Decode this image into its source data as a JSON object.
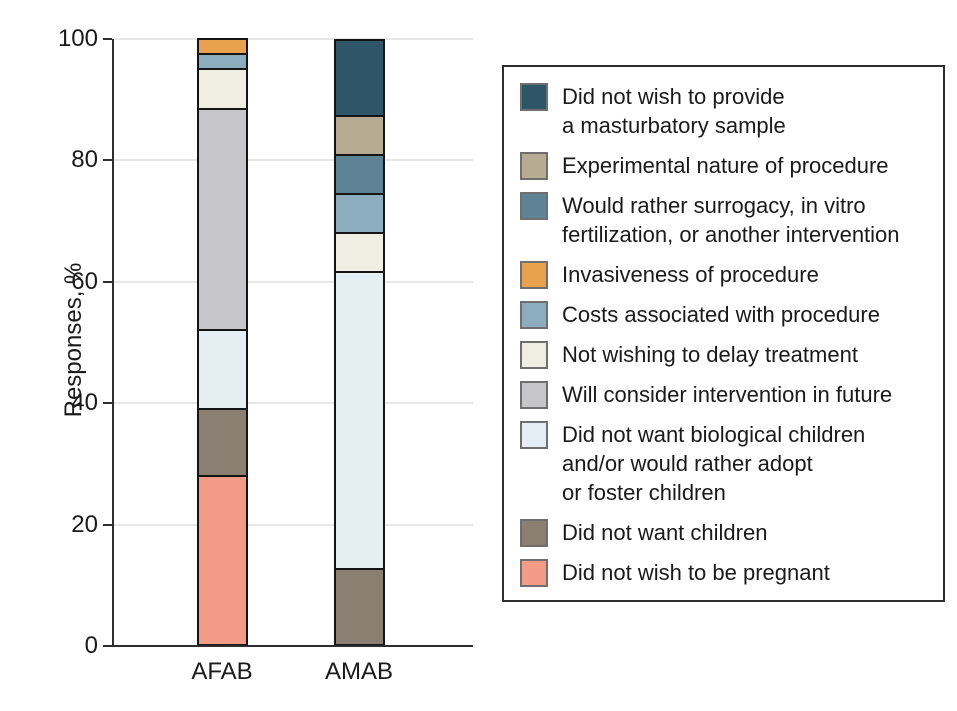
{
  "figure": {
    "background": "#ffffff",
    "axis_color": "#2e2e2e",
    "gridline_color": "#e7e7e6",
    "segment_border_color": "#141414"
  },
  "chart_data": {
    "type": "bar",
    "stacked": true,
    "title": "",
    "xlabel": "",
    "ylabel": "Responses, %",
    "ylim": [
      0,
      100
    ],
    "yticks": [
      0,
      20,
      40,
      60,
      80,
      100
    ],
    "grid": "horizontal",
    "legend_position": "right",
    "categories": [
      "AFAB",
      "AMAB"
    ],
    "series": [
      {
        "name": "Did not wish to provide\na masturbatory sample",
        "color": "#2F5569",
        "values": [
          0,
          12.5
        ]
      },
      {
        "name": "Experimental nature of procedure",
        "color": "#B7AB94",
        "values": [
          0,
          6.25
        ]
      },
      {
        "name": "Would rather surrogacy, in vitro\nfertilization, or another intervention",
        "color": "#5F8396",
        "values": [
          0,
          6.25
        ]
      },
      {
        "name": "Invasiveness of procedure",
        "color": "#E9A150",
        "values": [
          2.2,
          0
        ]
      },
      {
        "name": "Costs associated with procedure",
        "color": "#8BADBE",
        "values": [
          2.2,
          6.25
        ]
      },
      {
        "name": "Not wishing to delay treatment",
        "color": "#EFEEE2",
        "values": [
          6.5,
          6.25
        ]
      },
      {
        "name": "Will consider intervention in future",
        "color": "#C6C6C8",
        "values": [
          37.0,
          0
        ]
      },
      {
        "name": "Did not want biological children\nand/or would rather adopt\nor foster children",
        "color": "#E4EEF3",
        "values": [
          13.0,
          50.0
        ]
      },
      {
        "name": "Did not want children",
        "color": "#8A7F70",
        "values": [
          10.9,
          12.5
        ]
      },
      {
        "name": "Did not wish to be pregnant",
        "color": "#F29B86",
        "values": [
          28.3,
          0
        ]
      }
    ]
  }
}
